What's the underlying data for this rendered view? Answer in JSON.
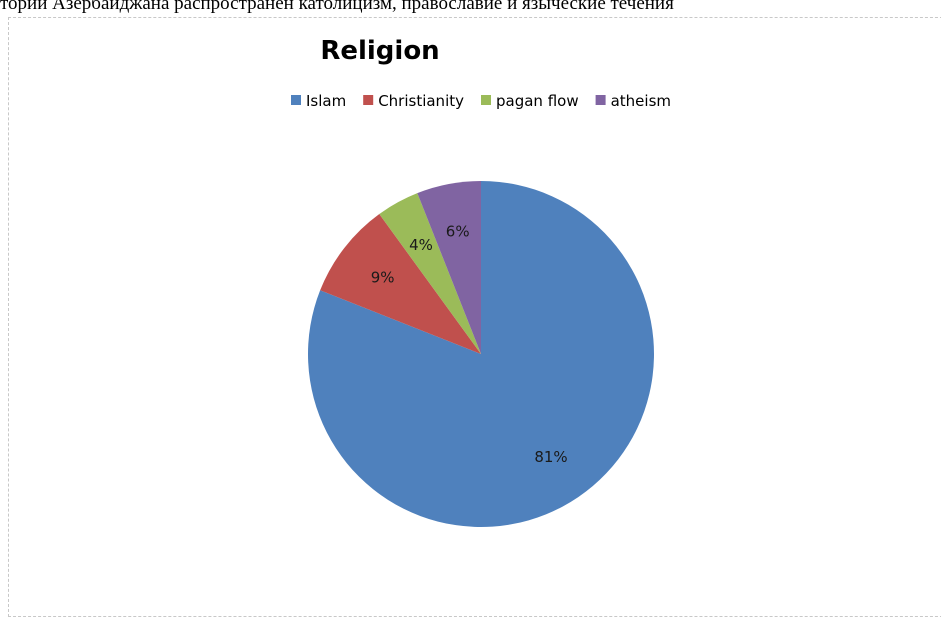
{
  "page": {
    "top_text": "тории Азербайджана распространен католицизм, православие и языческие течения"
  },
  "chart_data": {
    "type": "pie",
    "title": "Religion",
    "categories": [
      "Islam",
      "Christianity",
      "pagan flow",
      "atheism"
    ],
    "values": [
      81,
      9,
      4,
      6
    ],
    "labels": [
      "81%",
      "9%",
      "4%",
      "6%"
    ],
    "colors": [
      "#4F81BD",
      "#C0504D",
      "#9BBB59",
      "#8064A2"
    ],
    "legend_position": "top",
    "start": "12 o'clock",
    "direction": "clockwise"
  }
}
